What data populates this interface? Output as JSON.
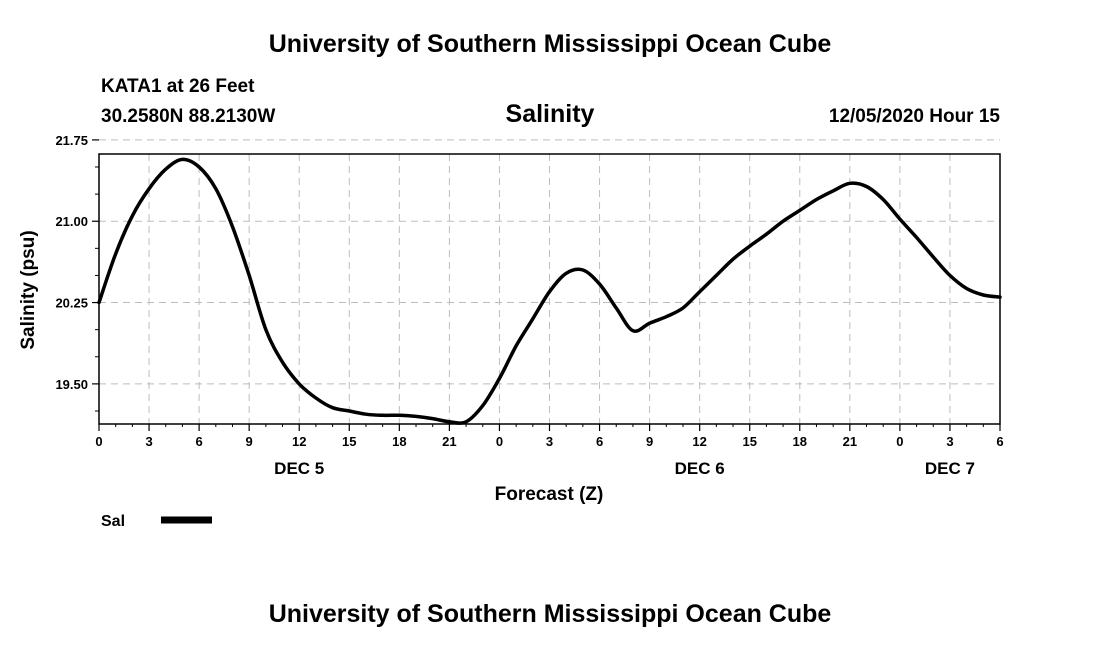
{
  "header": {
    "top_title": "University of Southern Mississippi Ocean Cube",
    "station": "KATA1 at 26 Feet",
    "coordinates": "30.2580N 88.2130W",
    "datetime": "12/05/2020 Hour 15"
  },
  "footer": {
    "bottom_title": "University of Southern Mississippi Ocean Cube"
  },
  "chart_data": {
    "type": "line",
    "title": "Salinity",
    "xlabel": "Forecast (Z)",
    "ylabel": "Salinity (psu)",
    "xlim": [
      0,
      54
    ],
    "ylim": [
      19.13,
      21.62
    ],
    "x_unit": "hours from DEC 5 00Z",
    "grid": true,
    "x_ticks": [
      {
        "x": 0,
        "label": "0"
      },
      {
        "x": 3,
        "label": "3"
      },
      {
        "x": 6,
        "label": "6"
      },
      {
        "x": 9,
        "label": "9"
      },
      {
        "x": 12,
        "label": "12"
      },
      {
        "x": 15,
        "label": "15"
      },
      {
        "x": 18,
        "label": "18"
      },
      {
        "x": 21,
        "label": "21"
      },
      {
        "x": 24,
        "label": "0"
      },
      {
        "x": 27,
        "label": "3"
      },
      {
        "x": 30,
        "label": "6"
      },
      {
        "x": 33,
        "label": "9"
      },
      {
        "x": 36,
        "label": "12"
      },
      {
        "x": 39,
        "label": "15"
      },
      {
        "x": 42,
        "label": "18"
      },
      {
        "x": 45,
        "label": "21"
      },
      {
        "x": 48,
        "label": "0"
      },
      {
        "x": 51,
        "label": "3"
      },
      {
        "x": 54,
        "label": "6"
      }
    ],
    "y_ticks": [
      {
        "y": 19.5,
        "label": "19.50"
      },
      {
        "y": 20.25,
        "label": "20.25"
      },
      {
        "y": 21.0,
        "label": "21.00"
      },
      {
        "y": 21.75,
        "label": "21.75"
      }
    ],
    "day_labels": [
      {
        "x": 12,
        "label": "DEC 5"
      },
      {
        "x": 36,
        "label": "DEC 6"
      },
      {
        "x": 51,
        "label": "DEC 7"
      }
    ],
    "legend_position": "bottom-left",
    "series": [
      {
        "name": "Sal",
        "color": "#000000",
        "x": [
          0,
          1,
          2,
          3,
          4,
          5,
          6,
          7,
          8,
          9,
          10,
          11,
          12,
          13,
          14,
          15,
          16,
          17,
          18,
          19,
          20,
          21,
          22,
          23,
          24,
          25,
          26,
          27,
          28,
          29,
          30,
          31,
          32,
          33,
          34,
          35,
          36,
          37,
          38,
          39,
          40,
          41,
          42,
          43,
          44,
          45,
          46,
          47,
          48,
          49,
          50,
          51,
          52,
          53,
          54
        ],
        "y": [
          20.25,
          20.7,
          21.05,
          21.3,
          21.48,
          21.57,
          21.5,
          21.3,
          20.95,
          20.5,
          20.0,
          19.7,
          19.5,
          19.37,
          19.28,
          19.25,
          19.22,
          19.21,
          19.21,
          19.2,
          19.18,
          19.15,
          19.15,
          19.3,
          19.55,
          19.85,
          20.1,
          20.35,
          20.52,
          20.55,
          20.42,
          20.2,
          19.99,
          20.06,
          20.12,
          20.2,
          20.35,
          20.5,
          20.65,
          20.77,
          20.88,
          21.0,
          21.1,
          21.2,
          21.28,
          21.35,
          21.32,
          21.2,
          21.02,
          20.85,
          20.67,
          20.5,
          20.38,
          20.32,
          20.3
        ]
      }
    ]
  }
}
